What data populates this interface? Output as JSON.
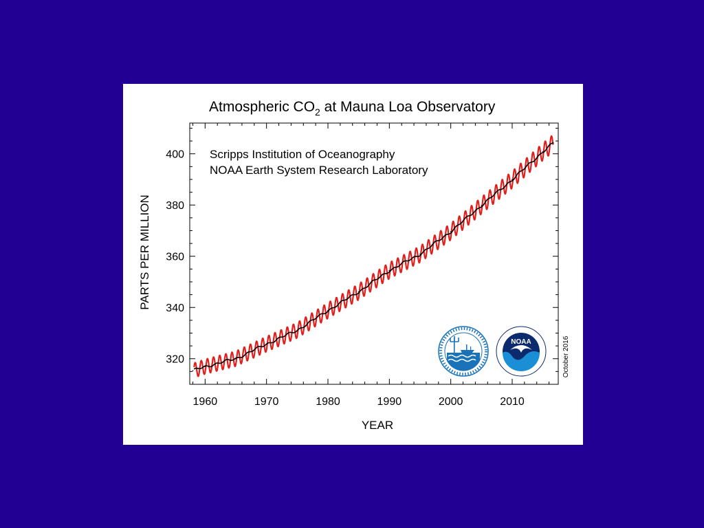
{
  "colors": {
    "background": "#230094",
    "card": "#ffffff",
    "monthly_series": "#e0201c",
    "trend_series": "#000000",
    "seal_blue": "#1a73b8",
    "noaa_navy": "#0c2a6e"
  },
  "chart_data": {
    "type": "line",
    "title_main": "Atmospheric CO",
    "title_subscript": "2",
    "title_rest": " at Mauna Loa Observatory",
    "xlabel": "YEAR",
    "ylabel": "PARTS PER MILLION",
    "xlim": [
      1957.5,
      2017.5
    ],
    "ylim": [
      310,
      412
    ],
    "xticks": [
      1960,
      1970,
      1980,
      1990,
      2000,
      2010
    ],
    "yticks": [
      320,
      340,
      360,
      380,
      400
    ],
    "x_tick_labels": [
      "1960",
      "1970",
      "1980",
      "1990",
      "2000",
      "2010"
    ],
    "y_tick_labels": [
      "320",
      "340",
      "360",
      "380",
      "400"
    ],
    "annotations": [
      "Scripps Institution of Oceanography",
      "NOAA Earth System Research Laboratory"
    ],
    "date_stamp": "October 2016",
    "grid": false,
    "series": [
      {
        "kind": "monthly mean (seasonal cycle)",
        "color": "#e0201c",
        "x_start": 1958.2,
        "x_end": 2016.7,
        "seasonal_amplitude_ppm": 3.2
      },
      {
        "kind": "seasonally corrected trend",
        "color": "#000000",
        "x": [
          1958,
          1960,
          1965,
          1970,
          1975,
          1980,
          1985,
          1990,
          1995,
          2000,
          2005,
          2010,
          2015,
          2016.7
        ],
        "y": [
          315.3,
          316.9,
          320.0,
          325.7,
          331.1,
          338.8,
          346.1,
          354.4,
          360.8,
          369.6,
          379.8,
          389.9,
          400.8,
          404.2
        ]
      }
    ]
  },
  "logos": {
    "scripps_seal_icon": "scripps-seal-icon",
    "noaa_logo_icon": "noaa-logo-icon",
    "noaa_text": "NOAA"
  }
}
